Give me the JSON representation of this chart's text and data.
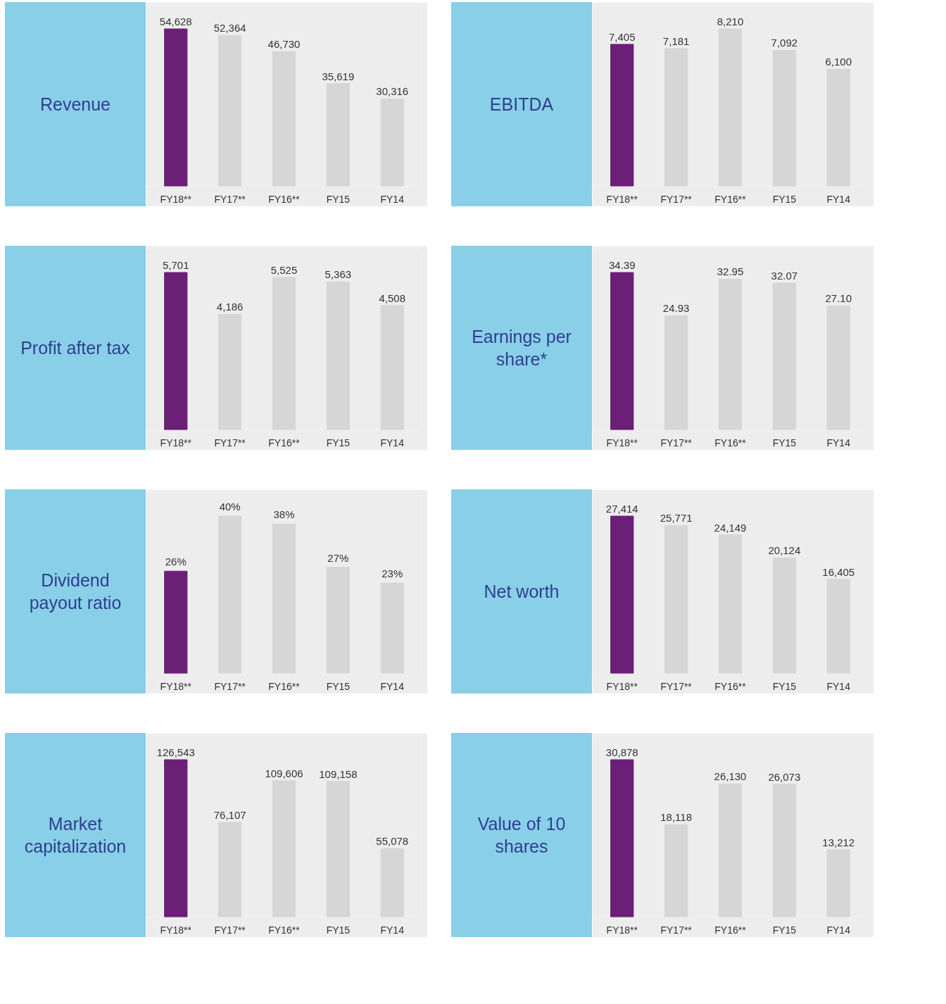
{
  "chart_data": [
    {
      "type": "bar",
      "title": "Revenue",
      "categories": [
        "FY18**",
        "FY17**",
        "FY16**",
        "FY15",
        "FY14"
      ],
      "values": [
        54628,
        52364,
        46730,
        35619,
        30316
      ],
      "value_labels": [
        "54,628",
        "52,364",
        "46,730",
        "35,619",
        "30,316"
      ],
      "colors": [
        "#6b1f76",
        "#d6d6d6",
        "#d6d6d6",
        "#d6d6d6",
        "#d6d6d6"
      ],
      "grid": false,
      "tick_labels": "x"
    },
    {
      "type": "bar",
      "title": "EBITDA",
      "categories": [
        "FY18**",
        "FY17**",
        "FY16**",
        "FY15",
        "FY14"
      ],
      "values": [
        7405,
        7181,
        8210,
        7092,
        6100
      ],
      "value_labels": [
        "7,405",
        "7,181",
        "8,210",
        "7,092",
        "6,100"
      ],
      "colors": [
        "#6b1f76",
        "#d6d6d6",
        "#d6d6d6",
        "#d6d6d6",
        "#d6d6d6"
      ],
      "grid": false,
      "tick_labels": "x"
    },
    {
      "type": "bar",
      "title": "Profit after tax",
      "categories": [
        "FY18**",
        "FY17**",
        "FY16**",
        "FY15",
        "FY14"
      ],
      "values": [
        5701,
        4186,
        5525,
        5363,
        4508
      ],
      "value_labels": [
        "5,701",
        "4,186",
        "5,525",
        "5,363",
        "4,508"
      ],
      "colors": [
        "#6b1f76",
        "#d6d6d6",
        "#d6d6d6",
        "#d6d6d6",
        "#d6d6d6"
      ],
      "grid": false,
      "tick_labels": "x"
    },
    {
      "type": "bar",
      "title": "Earnings per share*",
      "categories": [
        "FY18**",
        "FY17**",
        "FY16**",
        "FY15",
        "FY14"
      ],
      "values": [
        34.39,
        24.93,
        32.95,
        32.07,
        27.1
      ],
      "value_labels": [
        "34.39",
        "24.93",
        "32.95",
        "32.07",
        "27.10"
      ],
      "colors": [
        "#6b1f76",
        "#d6d6d6",
        "#d6d6d6",
        "#d6d6d6",
        "#d6d6d6"
      ],
      "grid": false,
      "tick_labels": "x"
    },
    {
      "type": "bar",
      "title": "Dividend payout ratio",
      "categories": [
        "FY18**",
        "FY17**",
        "FY16**",
        "FY15",
        "FY14"
      ],
      "values": [
        26,
        40,
        38,
        27,
        23
      ],
      "value_labels": [
        "26%",
        "40%",
        "38%",
        "27%",
        "23%"
      ],
      "colors": [
        "#6b1f76",
        "#d6d6d6",
        "#d6d6d6",
        "#d6d6d6",
        "#d6d6d6"
      ],
      "grid": false,
      "tick_labels": "x"
    },
    {
      "type": "bar",
      "title": "Net worth",
      "categories": [
        "FY18**",
        "FY17**",
        "FY16**",
        "FY15",
        "FY14"
      ],
      "values": [
        27414,
        25771,
        24149,
        20124,
        16405
      ],
      "value_labels": [
        "27,414",
        "25,771",
        "24,149",
        "20,124",
        "16,405"
      ],
      "colors": [
        "#6b1f76",
        "#d6d6d6",
        "#d6d6d6",
        "#d6d6d6",
        "#d6d6d6"
      ],
      "grid": false,
      "tick_labels": "x"
    },
    {
      "type": "bar",
      "title": "Market capitalization",
      "categories": [
        "FY18**",
        "FY17**",
        "FY16**",
        "FY15",
        "FY14"
      ],
      "values": [
        126543,
        76107,
        109606,
        109158,
        55078
      ],
      "value_labels": [
        "126,543",
        "76,107",
        "109,606",
        "109,158",
        "55,078"
      ],
      "colors": [
        "#6b1f76",
        "#d6d6d6",
        "#d6d6d6",
        "#d6d6d6",
        "#d6d6d6"
      ],
      "grid": false,
      "tick_labels": "x"
    },
    {
      "type": "bar",
      "title": "Value of 10 shares",
      "categories": [
        "FY18**",
        "FY17**",
        "FY16**",
        "FY15",
        "FY14"
      ],
      "values": [
        30878,
        18118,
        26130,
        26073,
        13212
      ],
      "value_labels": [
        "30,878",
        "18,118",
        "26,130",
        "26,073",
        "13,212"
      ],
      "colors": [
        "#6b1f76",
        "#d6d6d6",
        "#d6d6d6",
        "#d6d6d6",
        "#d6d6d6"
      ],
      "grid": false,
      "tick_labels": "x"
    }
  ]
}
